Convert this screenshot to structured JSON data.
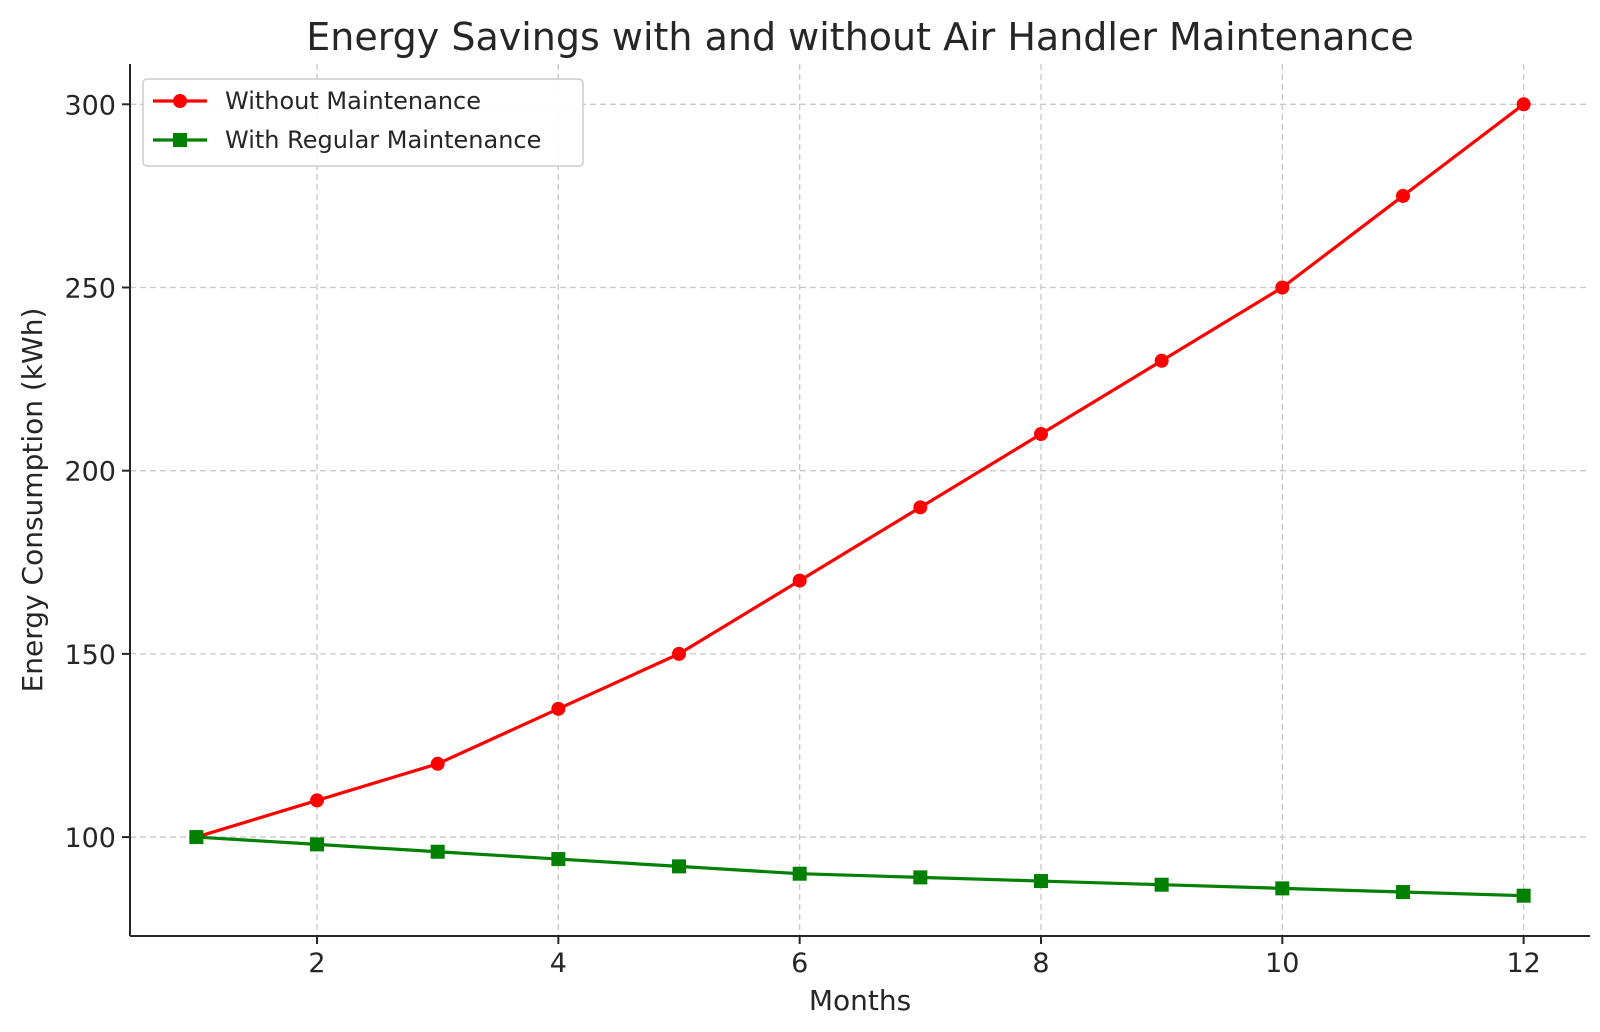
{
  "chart_data": {
    "type": "line",
    "title": "Energy Savings with and without Air Handler Maintenance",
    "xlabel": "Months",
    "ylabel": "Energy Consumption (kWh)",
    "x": [
      1,
      2,
      3,
      4,
      5,
      6,
      7,
      8,
      9,
      10,
      11,
      12
    ],
    "xlim": [
      0.45,
      12.55
    ],
    "ylim": [
      73,
      311
    ],
    "xticks": [
      2,
      4,
      6,
      8,
      10,
      12
    ],
    "yticks": [
      100,
      150,
      200,
      250,
      300
    ],
    "grid": true,
    "legend_position": "top-left",
    "series": [
      {
        "name": "Without Maintenance",
        "color": "#ff0000",
        "marker": "circle",
        "values": [
          100,
          110,
          120,
          135,
          150,
          170,
          190,
          210,
          230,
          250,
          275,
          300
        ]
      },
      {
        "name": "With Regular Maintenance",
        "color": "#008000",
        "marker": "square",
        "values": [
          100,
          98,
          96,
          94,
          92,
          90,
          89,
          88,
          87,
          86,
          85,
          84
        ]
      }
    ]
  }
}
